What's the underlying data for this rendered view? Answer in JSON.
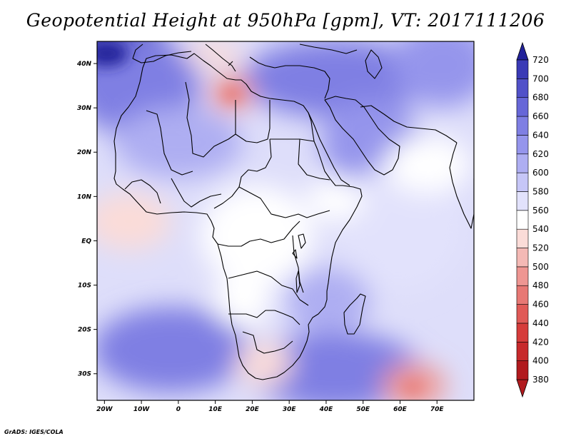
{
  "title": "Geopotential Height at 950hPa [gpm], VT: 2017111206",
  "credit": "GrADS: IGES/COLA",
  "axes": {
    "lat_labels": [
      "40N",
      "30N",
      "20N",
      "10N",
      "EQ",
      "10S",
      "20S",
      "30S"
    ],
    "lon_labels": [
      "20W",
      "10W",
      "0",
      "10E",
      "20E",
      "30E",
      "40E",
      "50E",
      "60E",
      "70E"
    ]
  },
  "colorbar": {
    "levels": [
      380,
      400,
      420,
      440,
      460,
      480,
      500,
      520,
      540,
      560,
      580,
      600,
      620,
      640,
      660,
      680,
      700,
      720
    ],
    "colors": [
      "#b11a1e",
      "#c7292b",
      "#d63c3b",
      "#e05a57",
      "#e77874",
      "#ee9692",
      "#f4b9b5",
      "#fbdcd8",
      "#ffffff",
      "#e2e2fc",
      "#c6c6f7",
      "#aeaef2",
      "#9595ec",
      "#7f7fe3",
      "#6767d8",
      "#5151c9",
      "#3a3ab6",
      "#22229a"
    ]
  },
  "colors": {
    "land_border": "#000000",
    "sea_background": "#dcdcfa"
  }
}
